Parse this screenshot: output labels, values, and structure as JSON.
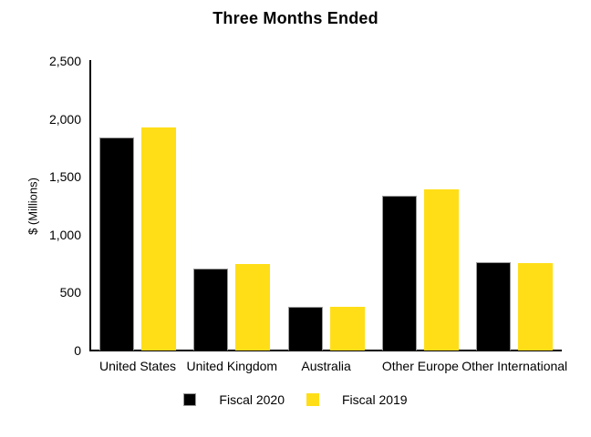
{
  "chart_data": {
    "type": "bar",
    "title": "Three Months Ended",
    "xlabel": "",
    "ylabel": "$ (Millions)",
    "categories": [
      "United States",
      "United Kingdom",
      "Australia",
      "Other Europe",
      "Other International"
    ],
    "series": [
      {
        "name": "Fiscal 2020",
        "color": "#000000",
        "values": [
          1840,
          710,
          380,
          1335,
          765
        ]
      },
      {
        "name": "Fiscal 2019",
        "color": "#FFDE17",
        "values": [
          1925,
          750,
          375,
          1390,
          755
        ]
      }
    ],
    "ylim": [
      0,
      2500
    ],
    "yticks": [
      0,
      500,
      1000,
      1500,
      2000,
      2500
    ],
    "ytick_labels": [
      "0",
      "500",
      "1,000",
      "1,500",
      "2,000",
      "2,500"
    ],
    "grid": false,
    "legend_position": "bottom",
    "background_color": "#ffffff",
    "axis_color": "#000000"
  }
}
